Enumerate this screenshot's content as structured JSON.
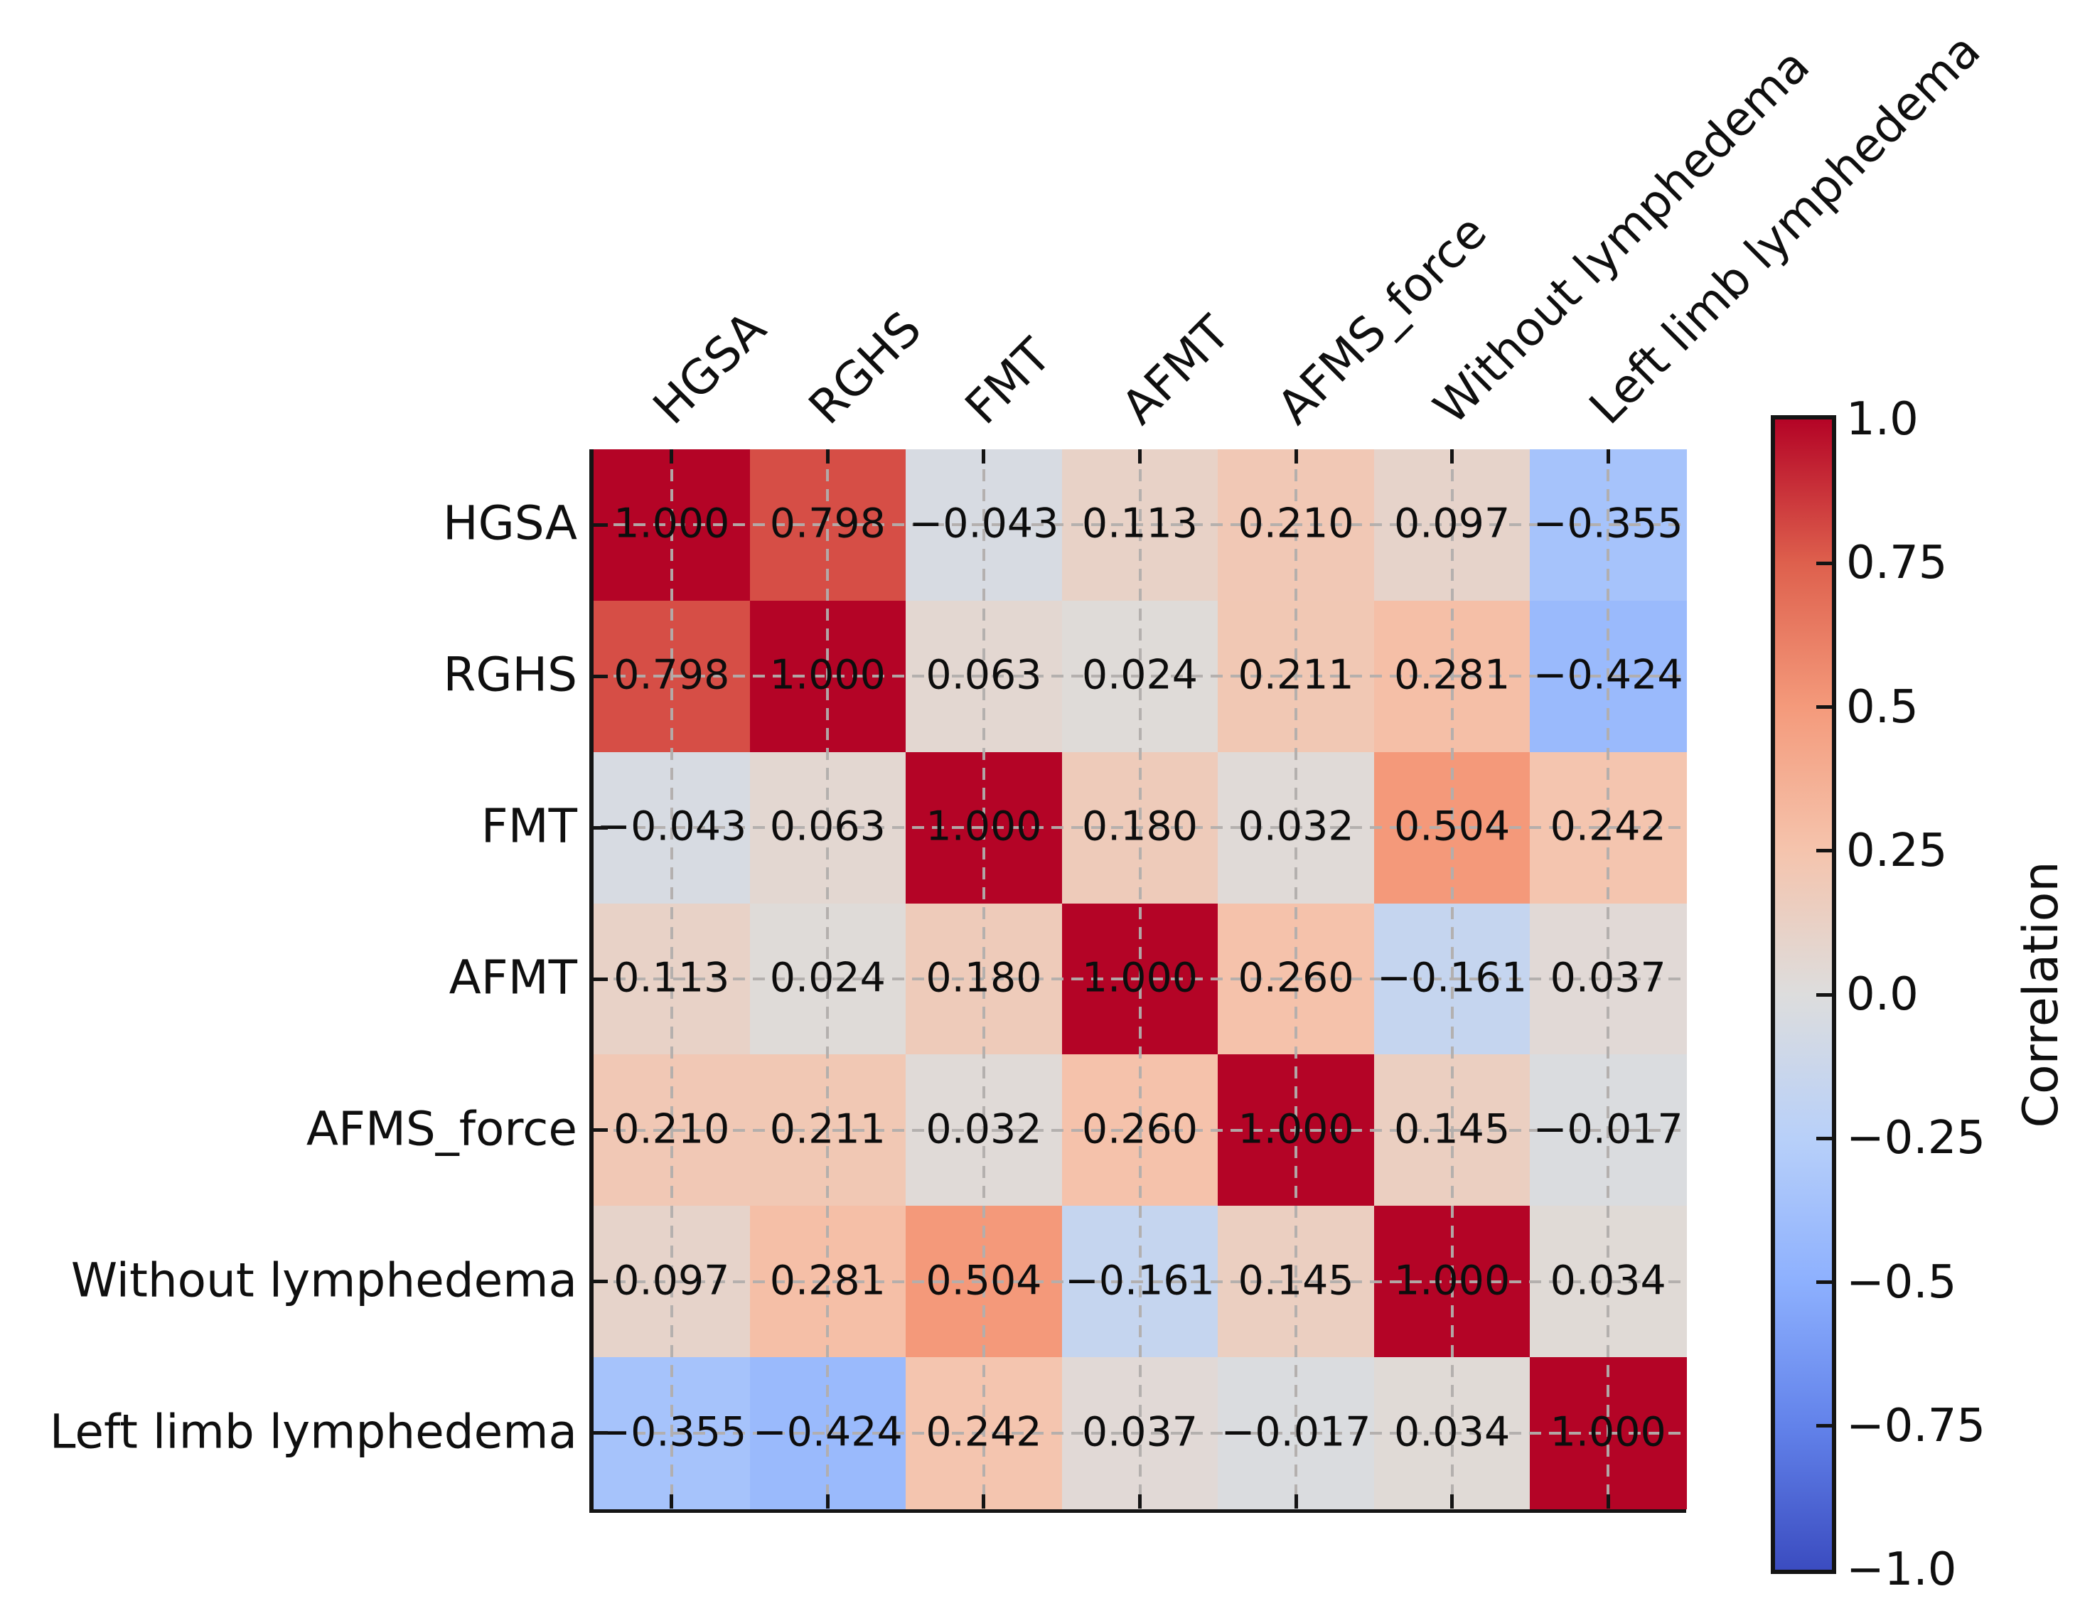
{
  "figure": {
    "background": "#ffffff",
    "text_color": "#0f0f0f"
  },
  "chart_data": {
    "type": "heatmap",
    "title": "",
    "variables": [
      "HGSA",
      "RGHS",
      "FMT",
      "AFMT",
      "AFMS_force",
      "Without lymphedema",
      "Left limb lymphedema"
    ],
    "matrix": [
      [
        1.0,
        0.798,
        -0.043,
        0.113,
        0.21,
        0.097,
        -0.355
      ],
      [
        0.798,
        1.0,
        0.063,
        0.024,
        0.211,
        0.281,
        -0.424
      ],
      [
        -0.043,
        0.063,
        1.0,
        0.18,
        0.032,
        0.504,
        0.242
      ],
      [
        0.113,
        0.024,
        0.18,
        1.0,
        0.26,
        -0.161,
        0.037
      ],
      [
        0.21,
        0.211,
        0.032,
        0.26,
        1.0,
        0.145,
        -0.017
      ],
      [
        0.097,
        0.281,
        0.504,
        -0.161,
        0.145,
        1.0,
        0.034
      ],
      [
        -0.355,
        -0.424,
        0.242,
        0.037,
        -0.017,
        0.034,
        1.0
      ]
    ],
    "value_decimals": 3,
    "vmin": -1.0,
    "vmax": 1.0,
    "colormap": {
      "name": "coolwarm",
      "stops": [
        "#3B4CC0",
        "#6282EA",
        "#8DB0FE",
        "#B8D0F9",
        "#DDDDDD",
        "#F5C4AD",
        "#F49A7B",
        "#DE604D",
        "#B40426"
      ]
    },
    "grid": {
      "show": true,
      "style": "dashed",
      "color": "#b2aeac"
    },
    "spines": [
      "left",
      "bottom"
    ],
    "colorbar": {
      "label": "Correlation",
      "tick_values": [
        1.0,
        0.75,
        0.5,
        0.25,
        0.0,
        -0.25,
        -0.5,
        -0.75,
        -1.0
      ],
      "tick_labels": [
        "1.0",
        "0.75",
        "0.5",
        "0.25",
        "0.0",
        "−0.25",
        "−0.5",
        "−0.75",
        "−1.0"
      ]
    }
  }
}
